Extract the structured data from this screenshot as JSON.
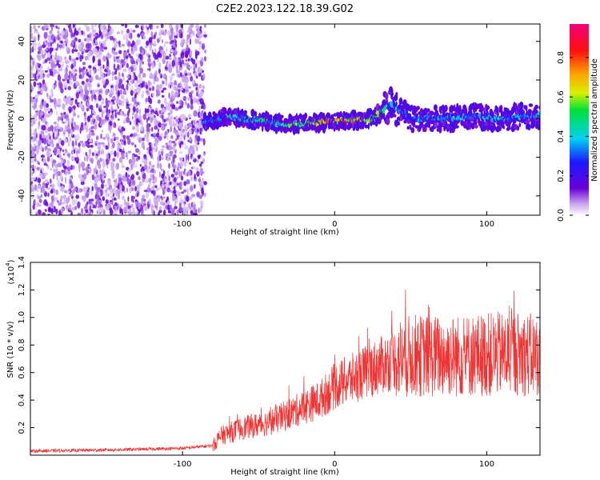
{
  "title": "C2E2.2023.122.18.39.G02",
  "colors": {
    "snr_line": "#ee3333",
    "background": "#ffffff"
  },
  "chart_data": [
    {
      "type": "heatmap",
      "xlabel": "Height of straight line (km)",
      "ylabel": "Frequency (Hz)",
      "xlim": [
        -200,
        135
      ],
      "ylim": [
        -50,
        49
      ],
      "xticks": [
        -100,
        0,
        100
      ],
      "yticks": [
        -40,
        -20,
        0,
        20,
        40
      ],
      "colorbar": {
        "label": "Normalized spectral amplitude",
        "range": [
          0.0,
          0.97
        ],
        "ticks": [
          0.0,
          0.2,
          0.4,
          0.6,
          0.8
        ],
        "colormap": "rainbow (purple-blue-cyan-green-yellow-red-magenta)"
      },
      "noise_region_x": [
        -200,
        -87
      ],
      "signal_trace": {
        "x": [
          -87,
          -70,
          -50,
          -30,
          -10,
          0,
          12,
          25,
          38,
          50,
          70,
          90,
          110,
          135
        ],
        "freq_hz": [
          -2,
          1,
          -1,
          -3,
          -2,
          -1,
          -1,
          0,
          8,
          0,
          0,
          1,
          0,
          2
        ],
        "peak_amplitude": [
          0.35,
          0.45,
          0.5,
          0.6,
          0.75,
          0.85,
          0.85,
          0.7,
          0.45,
          0.4,
          0.4,
          0.45,
          0.45,
          0.4
        ]
      }
    },
    {
      "type": "line",
      "xlabel": "Height of straight line (km)",
      "ylabel": "SNR (10 * v/v)",
      "scale_label": "(x10",
      "scale_exponent": "4",
      "xlim": [
        -200,
        135
      ],
      "ylim": [
        0.0,
        1.4
      ],
      "xticks": [
        -100,
        0,
        100
      ],
      "yticks": [
        0.2,
        0.4,
        0.6,
        0.8,
        1.0,
        1.2,
        1.4
      ],
      "series": [
        {
          "x": [
            -200,
            -140,
            -100,
            -80,
            -75,
            -60,
            -50,
            -40,
            -30,
            -20,
            -10,
            0,
            10,
            20,
            30,
            40,
            50,
            60,
            80,
            100,
            120,
            135
          ],
          "y": [
            0.03,
            0.04,
            0.05,
            0.07,
            0.14,
            0.2,
            0.22,
            0.25,
            0.3,
            0.35,
            0.4,
            0.5,
            0.55,
            0.6,
            0.65,
            0.7,
            0.72,
            0.72,
            0.72,
            0.73,
            0.74,
            0.72
          ]
        }
      ]
    }
  ]
}
